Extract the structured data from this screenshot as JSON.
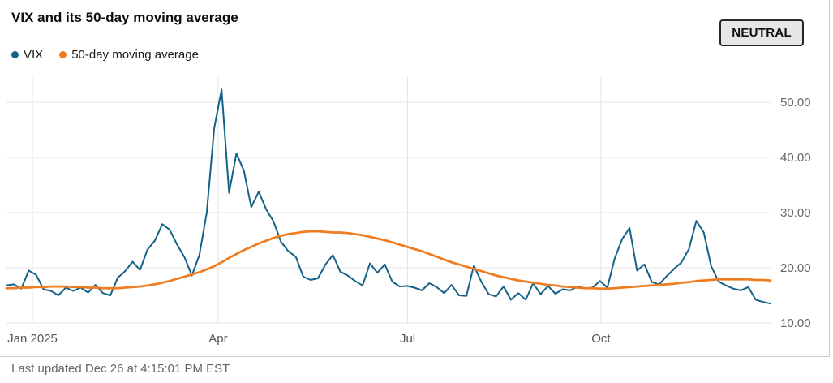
{
  "header": {
    "title": "VIX and its 50-day moving average",
    "badge": "NEUTRAL"
  },
  "footer": {
    "last_updated": "Last updated Dec 26 at 4:15:01 PM EST"
  },
  "colors": {
    "vix_line": "#156288",
    "ma_line": "#f07c20",
    "grid": "#e4e4e4",
    "axis_text": "#666666",
    "border": "#cfcfcf"
  },
  "chart_data": {
    "type": "line",
    "title": "VIX and its 50-day moving average",
    "legend_position": "top-left",
    "grid": true,
    "ylim": [
      10,
      55.6
    ],
    "y_ticks": [
      {
        "label": "10.00",
        "value": 10
      },
      {
        "label": "20.00",
        "value": 20
      },
      {
        "label": "30.00",
        "value": 30
      },
      {
        "label": "40.00",
        "value": 40
      },
      {
        "label": "50.00",
        "value": 50
      }
    ],
    "x_ticks": [
      {
        "label": "Jan 2025",
        "f": 0.034
      },
      {
        "label": "Apr",
        "f": 0.277
      },
      {
        "label": "Jul",
        "f": 0.525
      },
      {
        "label": "Oct",
        "f": 0.778
      }
    ],
    "series": [
      {
        "name": "VIX",
        "color": "#156288",
        "width": 2,
        "values": [
          16.8,
          17.0,
          16.2,
          19.5,
          18.7,
          16.1,
          15.8,
          15.0,
          16.4,
          15.8,
          16.4,
          15.5,
          16.9,
          15.4,
          15.0,
          18.2,
          19.4,
          21.1,
          19.6,
          23.3,
          24.9,
          27.9,
          26.9,
          24.2,
          21.9,
          18.6,
          22.3,
          30.0,
          45.3,
          52.3,
          33.6,
          40.7,
          37.6,
          31.0,
          33.8,
          30.6,
          28.4,
          24.7,
          23.0,
          22.0,
          18.4,
          17.8,
          18.1,
          20.6,
          22.3,
          19.3,
          18.6,
          17.6,
          16.8,
          20.8,
          19.1,
          20.6,
          17.5,
          16.6,
          16.7,
          16.4,
          15.9,
          17.2,
          16.5,
          15.4,
          16.9,
          15.0,
          14.9,
          20.4,
          17.5,
          15.2,
          14.8,
          16.6,
          14.2,
          15.4,
          14.2,
          17.2,
          15.2,
          16.7,
          15.3,
          16.1,
          15.9,
          16.6,
          16.3,
          16.4,
          17.6,
          16.4,
          21.7,
          25.2,
          27.2,
          19.5,
          20.6,
          17.4,
          17.0,
          18.5,
          19.8,
          21.0,
          23.4,
          28.5,
          26.4,
          20.3,
          17.5,
          16.8,
          16.2,
          15.9,
          16.5,
          14.2,
          13.8,
          13.5
        ]
      },
      {
        "name": "50-day moving average",
        "color": "#f07c20",
        "width": 2.75,
        "values": [
          16.3,
          16.3,
          16.4,
          16.4,
          16.5,
          16.5,
          16.6,
          16.6,
          16.6,
          16.5,
          16.5,
          16.4,
          16.4,
          16.3,
          16.3,
          16.3,
          16.4,
          16.5,
          16.6,
          16.8,
          17.0,
          17.3,
          17.6,
          18.0,
          18.4,
          18.8,
          19.2,
          19.7,
          20.3,
          21.0,
          21.8,
          22.5,
          23.2,
          23.8,
          24.4,
          24.9,
          25.4,
          25.8,
          26.1,
          26.3,
          26.5,
          26.6,
          26.6,
          26.5,
          26.4,
          26.4,
          26.3,
          26.1,
          25.9,
          25.6,
          25.3,
          25.0,
          24.6,
          24.2,
          23.8,
          23.4,
          23.0,
          22.5,
          22.0,
          21.5,
          21.0,
          20.6,
          20.2,
          19.8,
          19.4,
          19.0,
          18.6,
          18.3,
          18.0,
          17.7,
          17.5,
          17.3,
          17.1,
          16.9,
          16.8,
          16.6,
          16.5,
          16.4,
          16.3,
          16.3,
          16.2,
          16.2,
          16.3,
          16.4,
          16.5,
          16.6,
          16.7,
          16.8,
          16.9,
          17.0,
          17.1,
          17.3,
          17.4,
          17.6,
          17.7,
          17.8,
          17.9,
          17.9,
          17.9,
          17.9,
          17.9,
          17.8,
          17.8,
          17.7
        ]
      }
    ]
  }
}
